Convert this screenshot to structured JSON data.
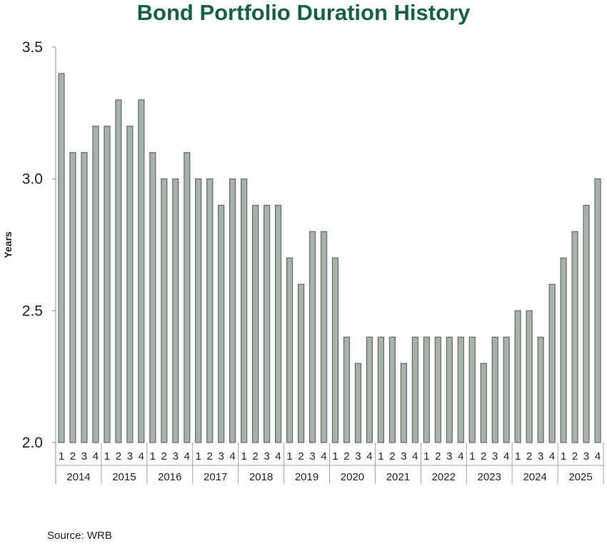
{
  "colors": {
    "title": "#16604a",
    "bar_fill": "#a7b2ab",
    "bar_stroke": "#5f6a63",
    "axis": "#a0a0a0",
    "text": "#222222"
  },
  "source": "Source: WRB",
  "chart_data": {
    "type": "bar",
    "title": "Bond Portfolio Duration History",
    "xlabel": "",
    "ylabel": "Years",
    "ylim": [
      2.0,
      3.5
    ],
    "yticks": [
      "2.0",
      "2.5",
      "3.0",
      "3.5"
    ],
    "grid": false,
    "legend": "none",
    "quarter_labels": [
      "1",
      "2",
      "3",
      "4"
    ],
    "years": [
      "2014",
      "2015",
      "2016",
      "2017",
      "2018",
      "2019",
      "2020",
      "2021",
      "2022",
      "2023",
      "2024",
      "2025"
    ],
    "values": [
      3.4,
      3.1,
      3.1,
      3.2,
      3.2,
      3.3,
      3.2,
      3.3,
      3.1,
      3.0,
      3.0,
      3.1,
      3.0,
      3.0,
      2.9,
      3.0,
      3.0,
      2.9,
      2.9,
      2.9,
      2.7,
      2.6,
      2.8,
      2.8,
      2.7,
      2.4,
      2.3,
      2.4,
      2.4,
      2.4,
      2.3,
      2.4,
      2.4,
      2.4,
      2.4,
      2.4,
      2.4,
      2.3,
      2.4,
      2.4,
      2.5,
      2.5,
      2.4,
      2.6,
      2.7,
      2.8,
      2.9,
      3.0
    ]
  }
}
